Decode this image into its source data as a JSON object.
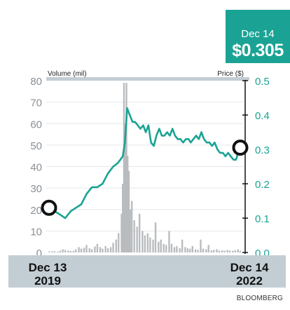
{
  "callout": {
    "date": "Dec 14",
    "price": "$0.305"
  },
  "source": "BLOOMBERG",
  "colors": {
    "price_line": "#1aa394",
    "volume_bars": "#b9bcbf",
    "header_bar": "#c3cdd4",
    "callout_bg": "#1aa394"
  },
  "chart_data": {
    "type": "line",
    "left_axis": {
      "title": "Volume (mil)",
      "range": [
        0,
        80
      ],
      "ticks": [
        "0",
        "10",
        "20",
        "30",
        "40",
        "50",
        "60",
        "70",
        "80"
      ]
    },
    "right_axis": {
      "title": "Price ($)",
      "range": [
        0.0,
        0.5
      ],
      "ticks": [
        "0.0",
        "0.1",
        "0.2",
        "0.3",
        "0.4",
        "0.5"
      ]
    },
    "x_axis": {
      "start": {
        "month_day": "Dec 13",
        "year": "2019"
      },
      "end": {
        "month_day": "Dec 14",
        "year": "2022"
      }
    },
    "price_series": {
      "x": [
        "2019-12-13",
        "2020-01-15",
        "2020-02-15",
        "2020-03-15",
        "2020-04-15",
        "2020-05-15",
        "2020-06-15",
        "2020-07-15",
        "2020-08-15",
        "2020-09-15",
        "2020-10-15",
        "2020-11-15",
        "2020-12-15",
        "2021-01-10",
        "2021-01-25",
        "2021-02-08",
        "2021-02-20",
        "2021-03-05",
        "2021-03-20",
        "2021-04-05",
        "2021-04-20",
        "2021-05-05",
        "2021-05-20",
        "2021-06-05",
        "2021-06-20",
        "2021-07-05",
        "2021-07-20",
        "2021-08-05",
        "2021-08-20",
        "2021-09-05",
        "2021-09-20",
        "2021-10-05",
        "2021-10-20",
        "2021-11-05",
        "2021-11-20",
        "2021-12-05",
        "2021-12-20",
        "2022-01-05",
        "2022-01-20",
        "2022-02-05",
        "2022-02-20",
        "2022-03-05",
        "2022-03-20",
        "2022-04-05",
        "2022-04-20",
        "2022-05-05",
        "2022-05-20",
        "2022-06-05",
        "2022-06-20",
        "2022-07-05",
        "2022-07-20",
        "2022-08-05",
        "2022-08-20",
        "2022-09-05",
        "2022-09-20",
        "2022-10-05",
        "2022-10-20",
        "2022-11-05",
        "2022-11-20",
        "2022-12-01",
        "2022-12-14"
      ],
      "y": [
        0.13,
        0.12,
        0.11,
        0.1,
        0.12,
        0.13,
        0.14,
        0.17,
        0.19,
        0.19,
        0.2,
        0.23,
        0.25,
        0.26,
        0.27,
        0.28,
        0.32,
        0.42,
        0.4,
        0.38,
        0.38,
        0.37,
        0.36,
        0.37,
        0.35,
        0.37,
        0.32,
        0.31,
        0.34,
        0.36,
        0.34,
        0.34,
        0.35,
        0.34,
        0.36,
        0.34,
        0.33,
        0.33,
        0.32,
        0.33,
        0.33,
        0.32,
        0.33,
        0.34,
        0.33,
        0.35,
        0.33,
        0.32,
        0.32,
        0.31,
        0.32,
        0.3,
        0.29,
        0.29,
        0.28,
        0.29,
        0.28,
        0.27,
        0.27,
        0.29,
        0.305
      ]
    },
    "volume_series": {
      "x": [
        "2019-12-15",
        "2020-01-01",
        "2020-01-15",
        "2020-02-01",
        "2020-02-15",
        "2020-03-01",
        "2020-03-15",
        "2020-04-01",
        "2020-04-15",
        "2020-05-01",
        "2020-05-15",
        "2020-06-01",
        "2020-06-15",
        "2020-07-01",
        "2020-07-15",
        "2020-08-01",
        "2020-08-15",
        "2020-09-01",
        "2020-09-15",
        "2020-10-01",
        "2020-10-15",
        "2020-11-01",
        "2020-11-15",
        "2020-12-01",
        "2020-12-15",
        "2021-01-01",
        "2021-01-15",
        "2021-02-01",
        "2021-02-08",
        "2021-02-15",
        "2021-02-22",
        "2021-03-01",
        "2021-03-08",
        "2021-03-15",
        "2021-03-22",
        "2021-04-01",
        "2021-04-15",
        "2021-05-01",
        "2021-05-15",
        "2021-06-01",
        "2021-06-15",
        "2021-07-01",
        "2021-07-15",
        "2021-08-01",
        "2021-08-15",
        "2021-09-01",
        "2021-09-15",
        "2021-10-01",
        "2021-10-15",
        "2021-11-01",
        "2021-11-15",
        "2021-12-01",
        "2021-12-15",
        "2022-01-01",
        "2022-01-15",
        "2022-02-01",
        "2022-02-15",
        "2022-03-01",
        "2022-03-15",
        "2022-04-01",
        "2022-04-15",
        "2022-05-01",
        "2022-05-15",
        "2022-06-01",
        "2022-06-15",
        "2022-07-01",
        "2022-07-15",
        "2022-08-01",
        "2022-08-15",
        "2022-09-01",
        "2022-09-15",
        "2022-10-01",
        "2022-10-15",
        "2022-11-01",
        "2022-11-15",
        "2022-12-01",
        "2022-12-14"
      ],
      "y": [
        0.5,
        0.6,
        0.5,
        0.4,
        0.8,
        1.5,
        1.2,
        0.9,
        0.7,
        0.8,
        1.5,
        2.5,
        1.8,
        2.2,
        3.5,
        2.0,
        1.5,
        2.8,
        4.0,
        2.5,
        1.8,
        3.0,
        2.0,
        2.5,
        4.5,
        6.0,
        9.0,
        18.0,
        32.0,
        79.0,
        60.0,
        79.0,
        45.0,
        38.0,
        20.0,
        24.0,
        15.0,
        12.0,
        18.0,
        10.0,
        8.0,
        9.0,
        7.0,
        6.0,
        14.0,
        5.0,
        6.0,
        4.0,
        3.5,
        10.0,
        4.0,
        2.5,
        3.0,
        2.0,
        6.0,
        2.5,
        2.0,
        1.8,
        3.0,
        1.5,
        1.2,
        6.0,
        1.8,
        1.5,
        3.5,
        1.0,
        1.2,
        1.5,
        0.9,
        1.0,
        0.8,
        1.2,
        0.9,
        0.8,
        1.0,
        1.5,
        0.8
      ]
    },
    "markers": [
      {
        "x": "2019-12-13",
        "y": 0.13,
        "label": "start"
      },
      {
        "x": "2022-12-14",
        "y": 0.305,
        "label": "end"
      }
    ]
  }
}
